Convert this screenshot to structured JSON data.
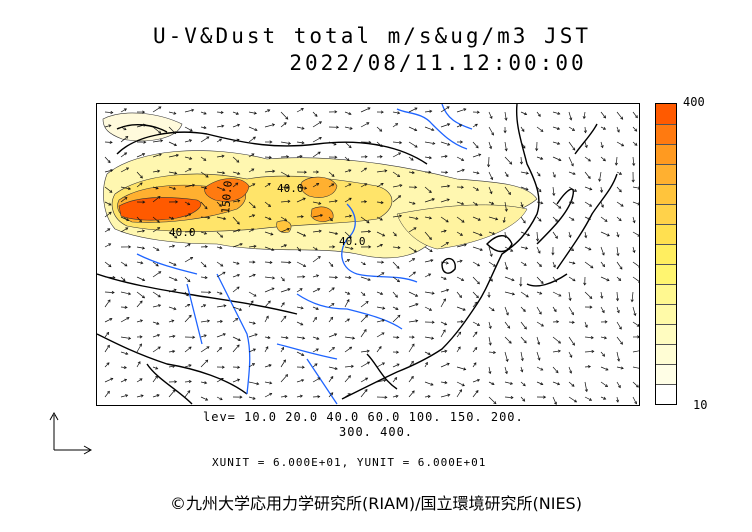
{
  "title_line1": "U-V&Dust total m/s&ug/m3 JST",
  "title_line2": "2022/08/11.12:00:00",
  "colorbar": {
    "max_label": "400",
    "min_label": "10",
    "colors": [
      "#ff5a00",
      "#ff7a10",
      "#ff9a20",
      "#ffb030",
      "#ffc43c",
      "#ffd24a",
      "#ffe050",
      "#ffee60",
      "#fff570",
      "#fff890",
      "#fffaa8",
      "#fffcc0",
      "#fffdd4",
      "#fffee6",
      "#ffffff"
    ]
  },
  "contour_labels": {
    "a": "40.0",
    "b": "40.0",
    "c": "40.0",
    "d": "150.0"
  },
  "levels_line1": "lev= 10.0 20.0 40.0 60.0 100. 150. 200.",
  "levels_line2": "300. 400.",
  "unit_text": "XUNIT = 6.000E+01, YUNIT = 6.000E+01",
  "copyright": "©九州大学応用力学研究所(RIAM)/国立環境研究所(NIES)",
  "colors": {
    "coast": "#000000",
    "river": "#1e64ff",
    "dust_heavy": "#ff4a00",
    "dust_light": "#fff7b0"
  }
}
